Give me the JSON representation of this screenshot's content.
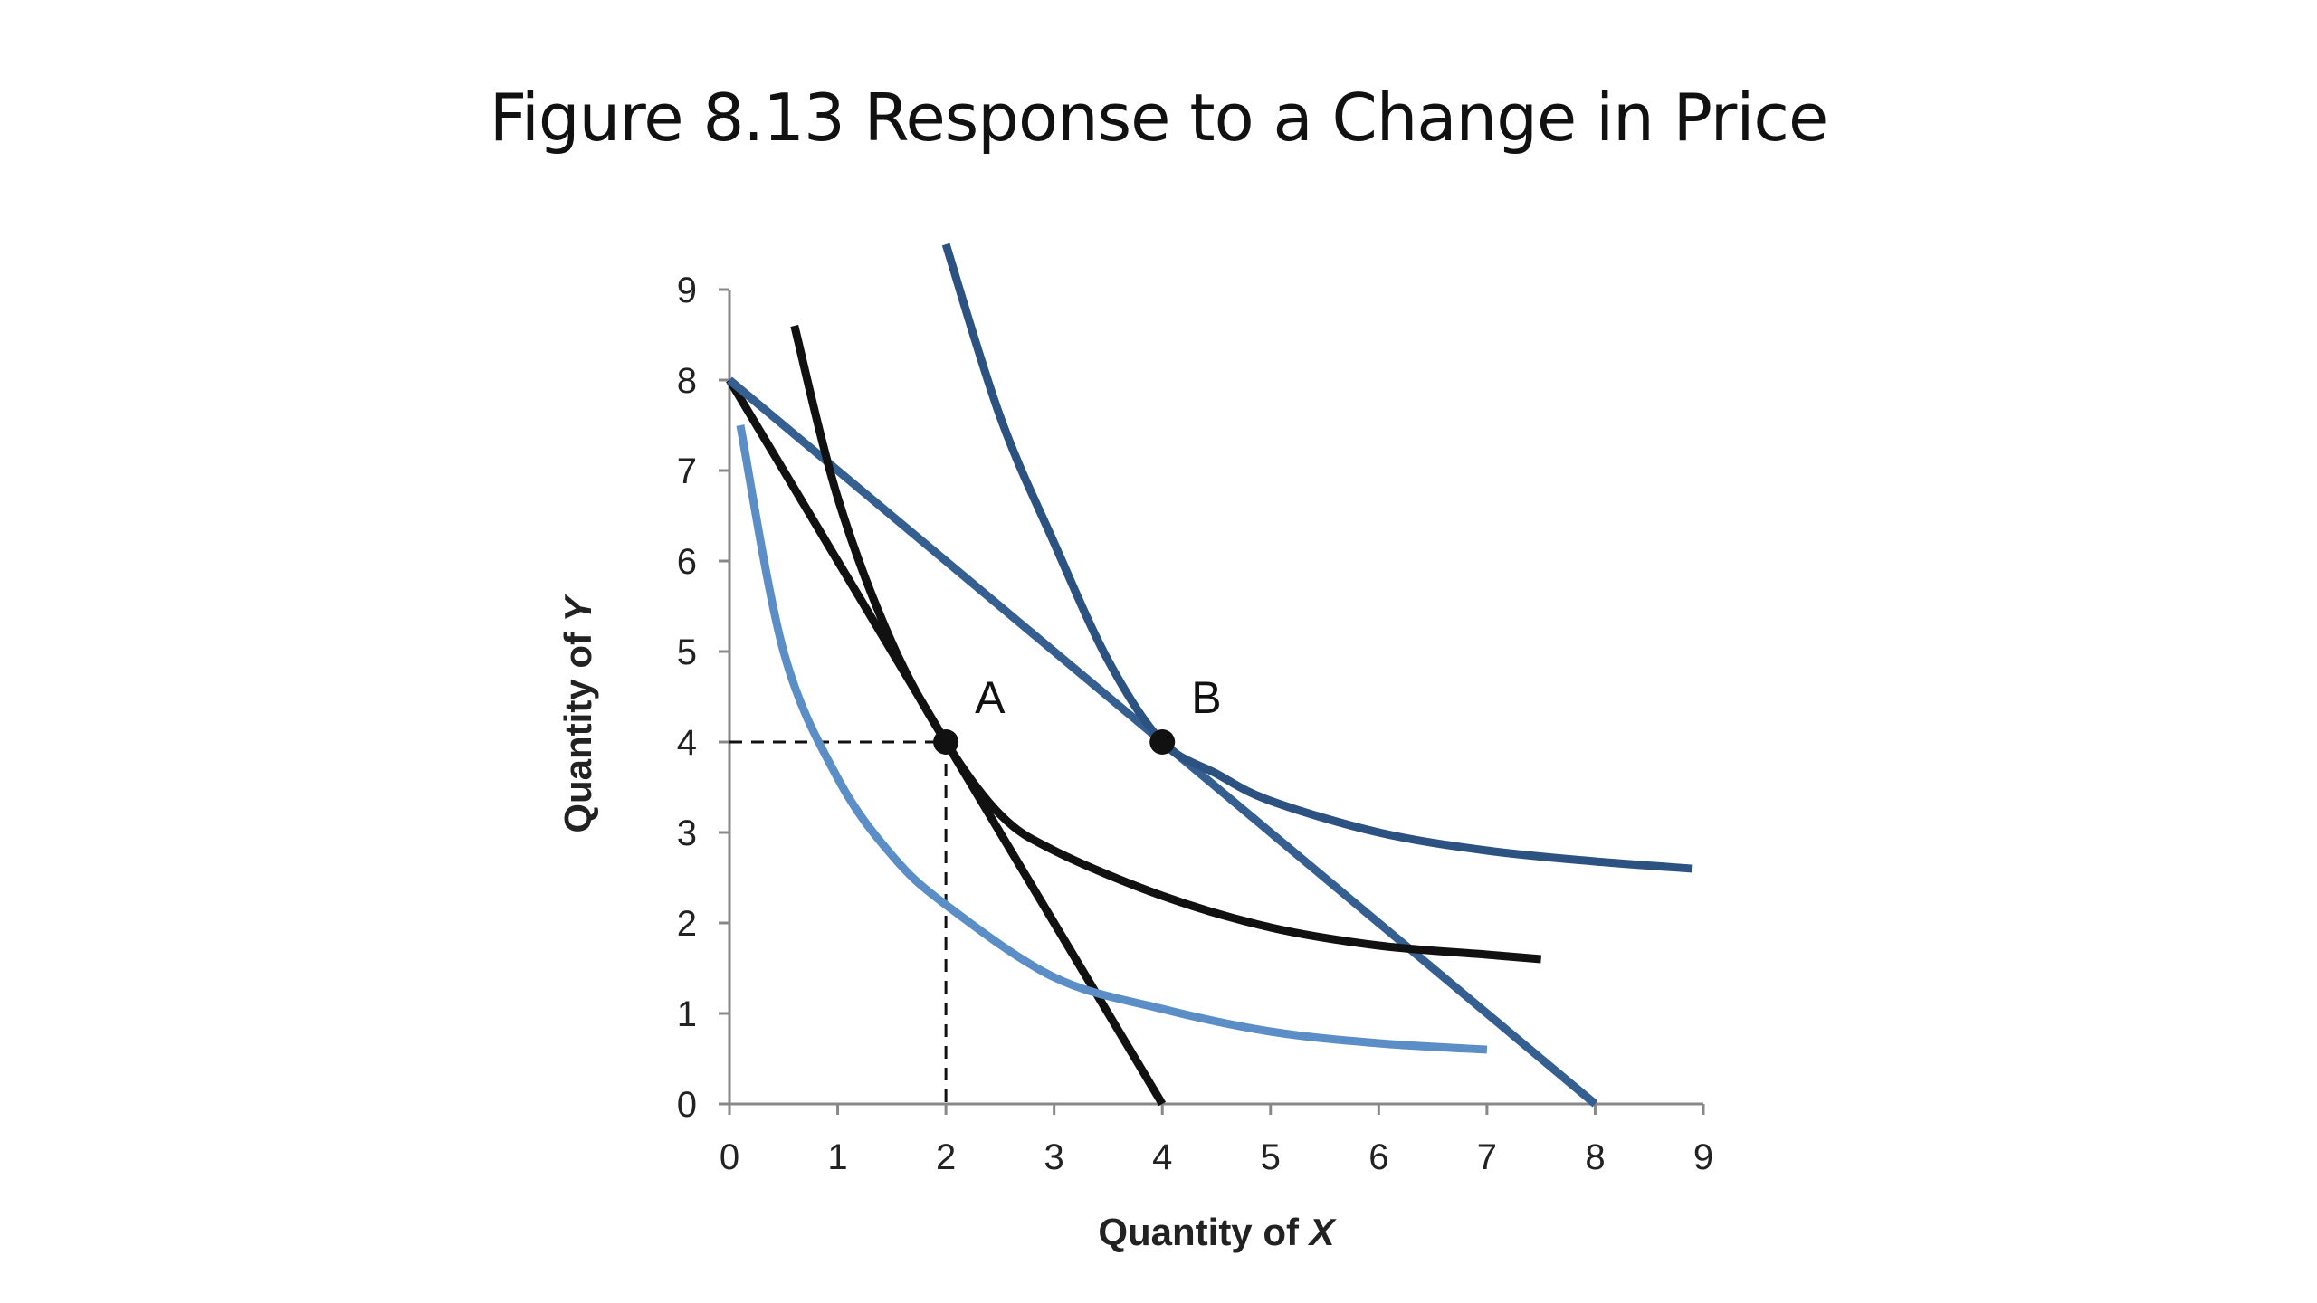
{
  "slide": {
    "title": "Figure 8.13 Response to a Change in Price"
  },
  "chart_data": {
    "type": "line",
    "title": "Figure 8.13 Response to a Change in Price",
    "xlabel": "Quantity of X",
    "ylabel": "Quantity of Y",
    "xlabel_prefix": "Quantity of ",
    "xlabel_var": "X",
    "ylabel_prefix": "Quantity of ",
    "ylabel_var": "Y",
    "xlim": [
      0,
      9
    ],
    "ylim": [
      0,
      9
    ],
    "x_ticks": [
      "0",
      "1",
      "2",
      "3",
      "4",
      "5",
      "6",
      "7",
      "8",
      "9"
    ],
    "y_ticks": [
      "0",
      "1",
      "2",
      "3",
      "4",
      "5",
      "6",
      "7",
      "8",
      "9"
    ],
    "grid": false,
    "legend": "none",
    "colors": {
      "black": "#111111",
      "dark_blue": "#2c5282",
      "mid_blue": "#365f91",
      "light_blue": "#5b8ec7",
      "axis": "#888888"
    },
    "series": [
      {
        "kind": "budget line",
        "color": "black",
        "points": [
          [
            0,
            8
          ],
          [
            4,
            0
          ]
        ]
      },
      {
        "kind": "budget line",
        "color": "mid_blue",
        "points": [
          [
            0,
            8
          ],
          [
            8,
            0
          ]
        ]
      },
      {
        "kind": "indifference curve",
        "color": "black",
        "points": [
          [
            0.6,
            8.6
          ],
          [
            1,
            6.7
          ],
          [
            1.5,
            5.1
          ],
          [
            2,
            4
          ],
          [
            2.5,
            3.2
          ],
          [
            3,
            2.8
          ],
          [
            4,
            2.3
          ],
          [
            5,
            1.95
          ],
          [
            6,
            1.75
          ],
          [
            7,
            1.65
          ],
          [
            7.5,
            1.6
          ]
        ]
      },
      {
        "kind": "indifference curve",
        "color": "light_blue",
        "points": [
          [
            0.1,
            7.5
          ],
          [
            0.5,
            5
          ],
          [
            1,
            3.6
          ],
          [
            1.5,
            2.75
          ],
          [
            2,
            2.2
          ],
          [
            3,
            1.4
          ],
          [
            4,
            1.05
          ],
          [
            5,
            0.8
          ],
          [
            6,
            0.67
          ],
          [
            7,
            0.6
          ]
        ]
      },
      {
        "kind": "indifference curve",
        "color": "dark_blue",
        "points": [
          [
            2,
            9.5
          ],
          [
            2.5,
            7.6
          ],
          [
            3,
            6.2
          ],
          [
            3.5,
            4.9
          ],
          [
            4,
            4
          ],
          [
            4.5,
            3.65
          ],
          [
            5,
            3.35
          ],
          [
            6,
            3
          ],
          [
            7,
            2.8
          ],
          [
            8,
            2.68
          ],
          [
            8.9,
            2.6
          ]
        ]
      }
    ],
    "points": [
      {
        "label": "A",
        "x": 2,
        "y": 4
      },
      {
        "label": "B",
        "x": 4,
        "y": 4
      }
    ],
    "guides": [
      {
        "from": [
          0,
          4
        ],
        "to": [
          2,
          4
        ]
      },
      {
        "from": [
          2,
          4
        ],
        "to": [
          2,
          0
        ]
      }
    ]
  }
}
